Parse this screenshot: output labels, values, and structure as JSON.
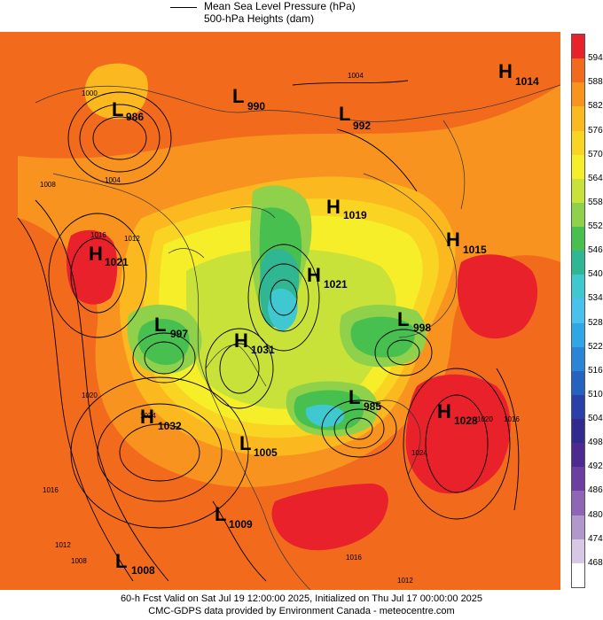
{
  "legend": {
    "line1": "Mean Sea Level Pressure (hPa)",
    "line2": "500-hPa Heights (dam)"
  },
  "colorbar": {
    "labels": [
      "594",
      "588",
      "582",
      "576",
      "570",
      "564",
      "558",
      "552",
      "546",
      "540",
      "534",
      "528",
      "522",
      "516",
      "510",
      "504",
      "498",
      "492",
      "486",
      "480",
      "474",
      "468"
    ],
    "colors": [
      "#e8212b",
      "#f26b1d",
      "#f7931e",
      "#fbb81f",
      "#fad423",
      "#f5ee28",
      "#c9e23a",
      "#8fd14a",
      "#47c04f",
      "#2fb794",
      "#3fc8d0",
      "#48c2ec",
      "#2fa7e6",
      "#2b85d6",
      "#2563c1",
      "#2a40a8",
      "#332a8f",
      "#4b2a92",
      "#6b3ea0",
      "#8f65b5",
      "#b297cc",
      "#d7c9e4",
      "#ffffff"
    ]
  },
  "pressure_centers": [
    {
      "type": "L",
      "value": "986"
    },
    {
      "type": "L",
      "value": "990"
    },
    {
      "type": "L",
      "value": "992"
    },
    {
      "type": "H",
      "value": "1014"
    },
    {
      "type": "H",
      "value": "1019"
    },
    {
      "type": "H",
      "value": "1015"
    },
    {
      "type": "H",
      "value": "1021"
    },
    {
      "type": "H",
      "value": "1021"
    },
    {
      "type": "L",
      "value": "997"
    },
    {
      "type": "H",
      "value": "1031"
    },
    {
      "type": "L",
      "value": "998"
    },
    {
      "type": "L",
      "value": "985"
    },
    {
      "type": "H",
      "value": "1028"
    },
    {
      "type": "H",
      "value": "1032"
    },
    {
      "type": "L",
      "value": "1005"
    },
    {
      "type": "L",
      "value": "1009"
    },
    {
      "type": "L",
      "value": "1008"
    }
  ],
  "isobar_labels": [
    "1004",
    "1000",
    "1008",
    "1004",
    "1016",
    "1012",
    "1020",
    "1024",
    "1016",
    "1012",
    "1008",
    "1020",
    "1024",
    "1016",
    "1016",
    "1012"
  ],
  "footer": {
    "line1": "60-h Fcst Valid on Sat Jul 19 12:00:00 2025, Initialized on Thu Jul 17 00:00:00 2025",
    "line2": "CMC-GDPS data provided by Environment Canada - meteocentre.com"
  }
}
